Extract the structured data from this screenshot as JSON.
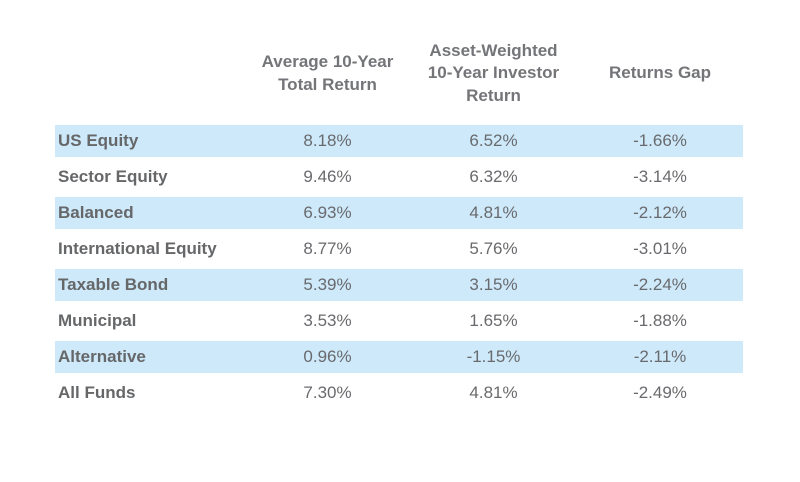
{
  "table": {
    "headers": {
      "label": "",
      "total": "Average 10-Year\nTotal Return",
      "investor": "Asset-Weighted\n10-Year Investor\nReturn",
      "gap": "Returns Gap"
    },
    "rows": [
      {
        "label": "US Equity",
        "total": "8.18%",
        "investor": "6.52%",
        "gap": "-1.66%"
      },
      {
        "label": "Sector Equity",
        "total": "9.46%",
        "investor": "6.32%",
        "gap": "-3.14%"
      },
      {
        "label": "Balanced",
        "total": "6.93%",
        "investor": "4.81%",
        "gap": "-2.12%"
      },
      {
        "label": "International Equity",
        "total": "8.77%",
        "investor": "5.76%",
        "gap": "-3.01%"
      },
      {
        "label": "Taxable Bond",
        "total": "5.39%",
        "investor": "3.15%",
        "gap": "-2.24%"
      },
      {
        "label": "Municipal",
        "total": "3.53%",
        "investor": "1.65%",
        "gap": "-1.88%"
      },
      {
        "label": "Alternative",
        "total": "0.96%",
        "investor": "-1.15%",
        "gap": "-2.11%"
      },
      {
        "label": "All Funds",
        "total": "7.30%",
        "investor": "4.81%",
        "gap": "-2.49%"
      }
    ]
  },
  "colors": {
    "row_highlight": "#cde9fa",
    "header_text": "#747578",
    "body_text": "#696a6d"
  },
  "chart_data": {
    "type": "table",
    "categories": [
      "US Equity",
      "Sector Equity",
      "Balanced",
      "International Equity",
      "Taxable Bond",
      "Municipal",
      "Alternative",
      "All Funds"
    ],
    "series": [
      {
        "name": "Average 10-Year Total Return",
        "values": [
          8.18,
          9.46,
          6.93,
          8.77,
          5.39,
          3.53,
          0.96,
          7.3
        ]
      },
      {
        "name": "Asset-Weighted 10-Year Investor Return",
        "values": [
          6.52,
          6.32,
          4.81,
          5.76,
          3.15,
          1.65,
          -1.15,
          4.81
        ]
      },
      {
        "name": "Returns Gap",
        "values": [
          -1.66,
          -3.14,
          -2.12,
          -3.01,
          -2.24,
          -1.88,
          -2.11,
          -2.49
        ]
      }
    ],
    "unit": "%",
    "layout": "alternating rows highlighted light blue starting with first data row; no gridlines; no visible title"
  }
}
